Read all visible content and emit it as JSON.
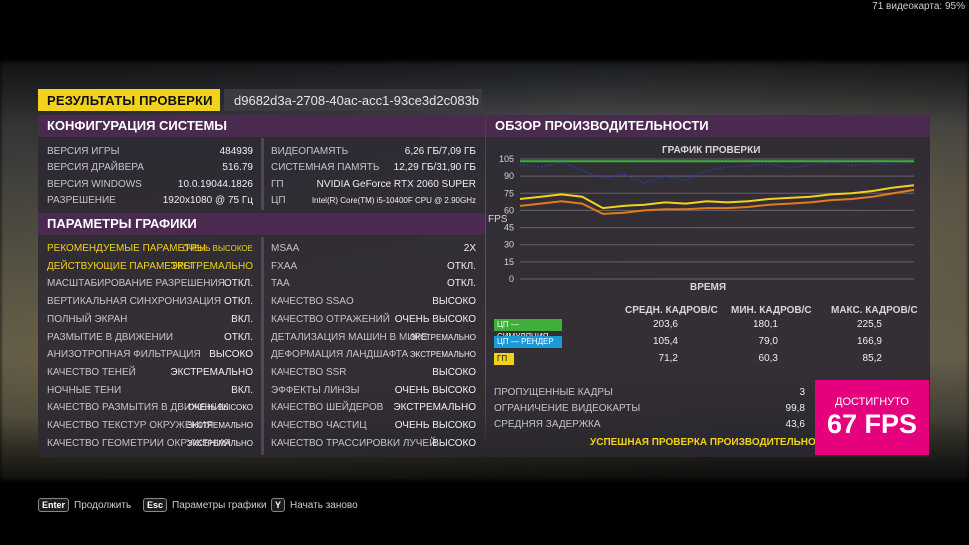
{
  "overlay": {
    "gpu_text": "71 видеокарта: 95%"
  },
  "header": {
    "title": "РЕЗУЛЬТАТЫ ПРОВЕРКИ",
    "id": "d9682d3a-2708-40ac-acc1-93ce3d2c083b"
  },
  "system": {
    "title": "КОНФИГУРАЦИЯ СИСТЕМЫ",
    "left": [
      {
        "label": "ВЕРСИЯ ИГРЫ",
        "value": "484939"
      },
      {
        "label": "ВЕРСИЯ ДРАЙВЕРА",
        "value": "516.79"
      },
      {
        "label": "ВЕРСИЯ WINDOWS",
        "value": "10.0.19044.1826"
      },
      {
        "label": "РАЗРЕШЕНИЕ",
        "value": "1920x1080 @ 75 Гц"
      }
    ],
    "right": [
      {
        "label": "ВИДЕОПАМЯТЬ",
        "value": "6,26 ГБ/7,09 ГБ"
      },
      {
        "label": "СИСТЕМНАЯ ПАМЯТЬ",
        "value": "12,29 ГБ/31,90 ГБ"
      },
      {
        "label": "ГП",
        "value": "NVIDIA GeForce RTX 2060 SUPER"
      },
      {
        "label": "ЦП",
        "value": "Intel(R) Core(TM) i5-10400F CPU @ 2.90GHz"
      }
    ]
  },
  "graphics": {
    "title": "ПАРАМЕТРЫ ГРАФИКИ",
    "left": [
      {
        "label": "РЕКОМЕНДУЕМЫЕ ПАРАМЕТРЫ",
        "value": "ОЧЕНЬ ВЫСОКОЕ"
      },
      {
        "label": "ДЕЙСТВУЮЩИЕ ПАРАМЕТРЫ",
        "value": "ЭКСТРЕМАЛЬНО"
      },
      {
        "label": "МАСШТАБИРОВАНИЕ РАЗРЕШЕНИЯ",
        "value": "ОТКЛ."
      },
      {
        "label": "ВЕРТИКАЛЬНАЯ СИНХРОНИЗАЦИЯ",
        "value": "ОТКЛ."
      },
      {
        "label": "ПОЛНЫЙ ЭКРАН",
        "value": "ВКЛ."
      },
      {
        "label": "РАЗМЫТИЕ В ДВИЖЕНИИ",
        "value": "ОТКЛ."
      },
      {
        "label": "АНИЗОТРОПНАЯ ФИЛЬТРАЦИЯ",
        "value": "ВЫСОКО"
      },
      {
        "label": "КАЧЕСТВО ТЕНЕЙ",
        "value": "ЭКСТРЕМАЛЬНО"
      },
      {
        "label": "НОЧНЫЕ ТЕНИ",
        "value": "ВКЛ."
      },
      {
        "label": "КАЧЕСТВО РАЗМЫТИЯ В ДВИЖЕНИИ",
        "value": "ОЧЕНЬ ВЫСОКО"
      },
      {
        "label": "КАЧЕСТВО ТЕКСТУР ОКРУЖЕНИЯ",
        "value": "ЭКСТРЕМАЛЬНО"
      },
      {
        "label": "КАЧЕСТВО ГЕОМЕТРИИ ОКРУЖЕНИЯ",
        "value": "ЭКСТРЕМАЛЬНО"
      }
    ],
    "right": [
      {
        "label": "MSAA",
        "value": "2X"
      },
      {
        "label": "FXAA",
        "value": "ОТКЛ."
      },
      {
        "label": "TAA",
        "value": "ОТКЛ."
      },
      {
        "label": "КАЧЕСТВО SSAO",
        "value": "ВЫСОКО"
      },
      {
        "label": "КАЧЕСТВО ОТРАЖЕНИЙ",
        "value": "ОЧЕНЬ ВЫСОКО"
      },
      {
        "label": "ДЕТАЛИЗАЦИЯ МАШИН В МИРЕ",
        "value": "ЭКСТРЕМАЛЬНО"
      },
      {
        "label": "ДЕФОРМАЦИЯ ЛАНДШАФТА",
        "value": "ЭКСТРЕМАЛЬНО"
      },
      {
        "label": "КАЧЕСТВО SSR",
        "value": "ВЫСОКО"
      },
      {
        "label": "ЭФФЕКТЫ ЛИНЗЫ",
        "value": "ОЧЕНЬ ВЫСОКО"
      },
      {
        "label": "КАЧЕСТВО ШЕЙДЕРОВ",
        "value": "ЭКСТРЕМАЛЬНО"
      },
      {
        "label": "КАЧЕСТВО ЧАСТИЦ",
        "value": "ОЧЕНЬ ВЫСОКО"
      },
      {
        "label": "КАЧЕСТВО ТРАССИРОВКИ ЛУЧЕЙ",
        "value": "ВЫСОКО"
      }
    ]
  },
  "performance": {
    "title": "ОБЗОР ПРОИЗВОДИТЕЛЬНОСТИ",
    "stats_headers": [
      "СРЕДН. КАДРОВ/С",
      "МИН. КАДРОВ/С",
      "МАКС. КАДРОВ/С"
    ],
    "stats": [
      {
        "label": "ЦП — СИМУЛЯЦИЯ",
        "color": "#3fae3a",
        "avg": "203,6",
        "min": "180,1",
        "max": "225,5"
      },
      {
        "label": "ЦП — РЕНДЕР",
        "color": "#1a9ad6",
        "avg": "105,4",
        "min": "79,0",
        "max": "166,9"
      },
      {
        "label": "ГП",
        "color": "#f2d21a",
        "avg": "71,2",
        "min": "60,3",
        "max": "85,2"
      }
    ],
    "summary": [
      {
        "label": "ПРОПУЩЕННЫЕ КАДРЫ",
        "value": "3"
      },
      {
        "label": "ОГРАНИЧЕНИЕ ВИДЕОКАРТЫ",
        "value": "99,8"
      },
      {
        "label": "СРЕДНЯЯ ЗАДЕРЖКА",
        "value": "43,6"
      }
    ],
    "success_text": "УСПЕШНАЯ ПРОВЕРКА ПРОИЗВОДИТЕЛЬНОСТИ",
    "achieved_label": "ДОСТИГНУТО",
    "achieved_value": "67 FPS"
  },
  "chart_data": {
    "type": "line",
    "title": "ГРАФИК ПРОВЕРКИ",
    "xlabel": "ВРЕМЯ",
    "ylabel": "FPS",
    "ylim": [
      0,
      105
    ],
    "yticks": [
      0,
      15,
      30,
      45,
      60,
      75,
      90,
      105
    ],
    "grid": true,
    "series": [
      {
        "name": "ЦП — СИМУЛЯЦИЯ",
        "color": "#3fae3a",
        "values": [
          103,
          103,
          103,
          103,
          103,
          103,
          103,
          103,
          103,
          103,
          103,
          103,
          103,
          103,
          103,
          103,
          103,
          103,
          103,
          103
        ]
      },
      {
        "name": "ЦП — РЕНДЕР",
        "color": "#2a3fd0",
        "values": [
          100,
          98,
          102,
          95,
          88,
          92,
          84,
          90,
          86,
          95,
          98,
          99,
          101,
          97,
          100,
          102,
          99,
          101,
          100,
          102
        ]
      },
      {
        "name": "ГП",
        "color": "#f2d21a",
        "values": [
          70,
          72,
          74,
          72,
          62,
          64,
          65,
          67,
          66,
          68,
          67,
          68,
          70,
          71,
          72,
          74,
          75,
          77,
          80,
          82
        ]
      },
      {
        "color": "#e37b1c",
        "values": [
          64,
          66,
          68,
          66,
          57,
          58,
          60,
          61,
          61,
          62,
          62,
          63,
          65,
          66,
          67,
          69,
          70,
          72,
          75,
          78
        ]
      }
    ]
  },
  "footer": [
    {
      "key": "Enter",
      "label": "Продолжить"
    },
    {
      "key": "Esc",
      "label": "Параметры графики"
    },
    {
      "key": "Y",
      "label": "Начать заново"
    }
  ]
}
